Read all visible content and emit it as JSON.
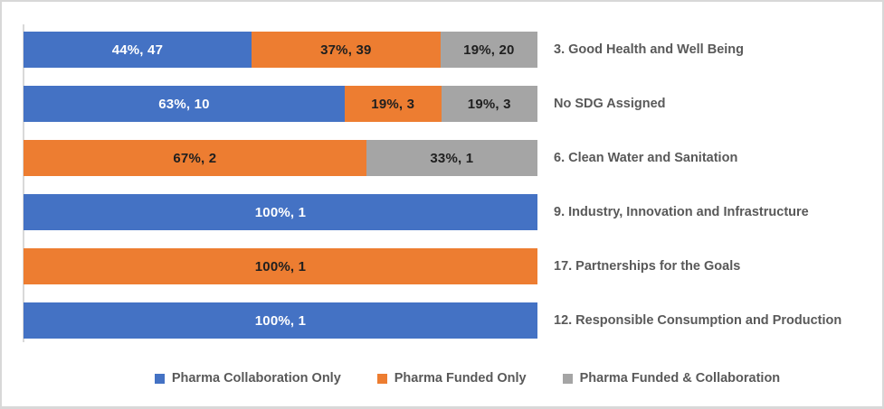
{
  "chart_data": {
    "type": "bar",
    "orientation": "horizontal",
    "stacked": "100-percent",
    "title": "",
    "xlabel": "",
    "ylabel": "",
    "grid": false,
    "legend_position": "bottom",
    "categories": [
      "3. Good Health and Well Being",
      "No SDG Assigned",
      "6. Clean Water and Sanitation",
      "9. Industry, Innovation and Infrastructure",
      "17. Partnerships for the Goals",
      "12. Responsible Consumption and Production"
    ],
    "series": [
      {
        "name": "Pharma Collaboration Only",
        "counts": [
          47,
          10,
          0,
          1,
          0,
          1
        ],
        "percents": [
          44,
          63,
          0,
          100,
          0,
          100
        ]
      },
      {
        "name": "Pharma Funded Only",
        "counts": [
          39,
          3,
          2,
          0,
          1,
          0
        ],
        "percents": [
          37,
          19,
          67,
          0,
          100,
          0
        ]
      },
      {
        "name": "Pharma Funded & Collaboration",
        "counts": [
          20,
          3,
          1,
          0,
          0,
          0
        ],
        "percents": [
          19,
          19,
          33,
          0,
          0,
          0
        ]
      }
    ],
    "series_meta": {
      "collab": {
        "name": "Pharma Collaboration Only",
        "color": "#4472C4",
        "text_color": "#FFFFFF"
      },
      "funded": {
        "name": "Pharma Funded Only",
        "color": "#ED7D31",
        "text_color": "#1F1F1F"
      },
      "both": {
        "name": "Pharma Funded & Collaboration",
        "color": "#A5A5A5",
        "text_color": "#1F1F1F"
      }
    },
    "legend_order": [
      "collab",
      "funded",
      "both"
    ],
    "rows": [
      {
        "category": "3. Good Health and Well Being",
        "segments": [
          {
            "series": "collab",
            "label": "44%, 47",
            "pct": 44.34
          },
          {
            "series": "funded",
            "label": "37%, 39",
            "pct": 36.79
          },
          {
            "series": "both",
            "label": "19%, 20",
            "pct": 18.87
          }
        ]
      },
      {
        "category": "No SDG Assigned",
        "segments": [
          {
            "series": "collab",
            "label": "63%, 10",
            "pct": 62.5
          },
          {
            "series": "funded",
            "label": "19%, 3",
            "pct": 18.75
          },
          {
            "series": "both",
            "label": "19%, 3",
            "pct": 18.75
          }
        ]
      },
      {
        "category": "6. Clean Water and Sanitation",
        "segments": [
          {
            "series": "funded",
            "label": "67%, 2",
            "pct": 66.67
          },
          {
            "series": "both",
            "label": "33%, 1",
            "pct": 33.33
          }
        ]
      },
      {
        "category": "9. Industry, Innovation and Infrastructure",
        "segments": [
          {
            "series": "collab",
            "label": "100%, 1",
            "pct": 100
          }
        ]
      },
      {
        "category": "17. Partnerships for the Goals",
        "segments": [
          {
            "series": "funded",
            "label": "100%, 1",
            "pct": 100
          }
        ]
      },
      {
        "category": "12. Responsible Consumption and Production",
        "segments": [
          {
            "series": "collab",
            "label": "100%, 1",
            "pct": 100
          }
        ]
      }
    ],
    "colors": {
      "axis_line": "#D9D9D9",
      "frame_border": "#D8D8D8",
      "category_text": "#595959",
      "legend_text": "#595959",
      "background": "#FFFFFF"
    }
  }
}
